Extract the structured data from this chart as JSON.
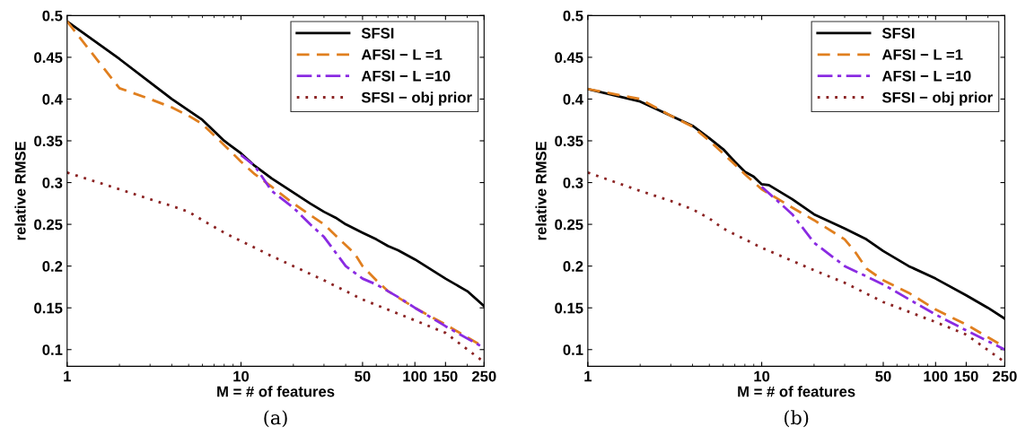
{
  "chart_data": [
    {
      "type": "line",
      "xlabel": "M = # of features",
      "ylabel": "relative RMSE",
      "annotations": [
        "(a)"
      ],
      "log": "x",
      "xlim": [
        1,
        250
      ],
      "xticks": [
        1,
        10,
        50,
        100,
        150,
        250
      ],
      "ylim": [
        0.08,
        0.5
      ],
      "yticks": [
        0.1,
        0.15,
        0.2,
        0.25,
        0.3,
        0.35,
        0.4,
        0.45,
        0.5
      ],
      "grid": false,
      "legend": "top right",
      "series": [
        {
          "name": "SFSI",
          "color": "#000000",
          "line_style": "solid",
          "x": [
            1,
            2,
            3,
            4,
            6,
            8,
            10,
            12,
            15,
            20,
            25,
            30,
            35,
            40,
            50,
            60,
            70,
            80,
            100,
            150,
            200,
            250
          ],
          "values": [
            0.493,
            0.448,
            0.42,
            0.4,
            0.375,
            0.35,
            0.335,
            0.32,
            0.305,
            0.288,
            0.275,
            0.265,
            0.258,
            0.25,
            0.24,
            0.232,
            0.224,
            0.219,
            0.208,
            0.185,
            0.17,
            0.152
          ]
        },
        {
          "name": "AFSI − L =1",
          "color": "#e07f1f",
          "line_style": "dashed",
          "x": [
            1,
            2,
            3,
            4,
            5,
            6,
            8,
            10,
            12,
            15,
            20,
            30,
            40,
            45,
            50,
            60,
            70,
            100,
            150,
            250
          ],
          "values": [
            0.493,
            0.413,
            0.4,
            0.39,
            0.38,
            0.37,
            0.345,
            0.325,
            0.31,
            0.295,
            0.275,
            0.25,
            0.225,
            0.215,
            0.2,
            0.183,
            0.17,
            0.15,
            0.13,
            0.103
          ]
        },
        {
          "name": "AFSI − L =10",
          "color": "#8a2be2",
          "line_style": "dashdot",
          "x": [
            10,
            12,
            15,
            20,
            25,
            30,
            40,
            50,
            60,
            80,
            100,
            150,
            250
          ],
          "values": [
            0.333,
            0.32,
            0.29,
            0.27,
            0.25,
            0.235,
            0.2,
            0.185,
            0.178,
            0.163,
            0.15,
            0.128,
            0.102
          ]
        },
        {
          "name": "SFSI − obj prior",
          "color": "#8b2323",
          "line_style": "dotted",
          "x": [
            1,
            2,
            3,
            4,
            5,
            6,
            8,
            10,
            15,
            20,
            30,
            50,
            100,
            150,
            250
          ],
          "values": [
            0.312,
            0.292,
            0.28,
            0.272,
            0.265,
            0.255,
            0.24,
            0.23,
            0.212,
            0.2,
            0.183,
            0.16,
            0.135,
            0.12,
            0.085
          ]
        }
      ]
    },
    {
      "type": "line",
      "xlabel": "M = # of features",
      "ylabel": "relative RMSE",
      "annotations": [
        "(b)"
      ],
      "log": "x",
      "xlim": [
        1,
        250
      ],
      "xticks": [
        1,
        10,
        50,
        100,
        150,
        250
      ],
      "ylim": [
        0.08,
        0.5
      ],
      "yticks": [
        0.1,
        0.15,
        0.2,
        0.25,
        0.3,
        0.35,
        0.4,
        0.45,
        0.5
      ],
      "grid": false,
      "legend": "top right",
      "series": [
        {
          "name": "SFSI",
          "color": "#000000",
          "line_style": "solid",
          "x": [
            1,
            2,
            3,
            4,
            5,
            6,
            7,
            8,
            9,
            10,
            11,
            15,
            20,
            30,
            40,
            50,
            70,
            100,
            150,
            200,
            250
          ],
          "values": [
            0.412,
            0.397,
            0.38,
            0.368,
            0.353,
            0.34,
            0.325,
            0.313,
            0.307,
            0.298,
            0.297,
            0.28,
            0.262,
            0.245,
            0.232,
            0.218,
            0.2,
            0.185,
            0.165,
            0.15,
            0.137
          ]
        },
        {
          "name": "AFSI − L =1",
          "color": "#e07f1f",
          "line_style": "dashed",
          "x": [
            1,
            2,
            3,
            4,
            5,
            6,
            8,
            10,
            15,
            20,
            30,
            35,
            40,
            50,
            70,
            100,
            150,
            250
          ],
          "values": [
            0.412,
            0.4,
            0.38,
            0.367,
            0.35,
            0.335,
            0.31,
            0.292,
            0.27,
            0.255,
            0.232,
            0.215,
            0.197,
            0.183,
            0.168,
            0.148,
            0.13,
            0.103
          ]
        },
        {
          "name": "AFSI − L =10",
          "color": "#8a2be2",
          "line_style": "dashdot",
          "x": [
            10,
            15,
            20,
            30,
            50,
            100,
            150,
            250
          ],
          "values": [
            0.295,
            0.262,
            0.228,
            0.2,
            0.178,
            0.142,
            0.123,
            0.1
          ]
        },
        {
          "name": "SFSI − obj prior",
          "color": "#8b2323",
          "line_style": "dotted",
          "x": [
            1,
            2,
            3,
            4,
            5,
            6,
            8,
            10,
            20,
            30,
            50,
            100,
            150,
            250
          ],
          "values": [
            0.312,
            0.29,
            0.278,
            0.268,
            0.257,
            0.245,
            0.232,
            0.222,
            0.195,
            0.18,
            0.157,
            0.133,
            0.118,
            0.085
          ]
        }
      ]
    }
  ]
}
